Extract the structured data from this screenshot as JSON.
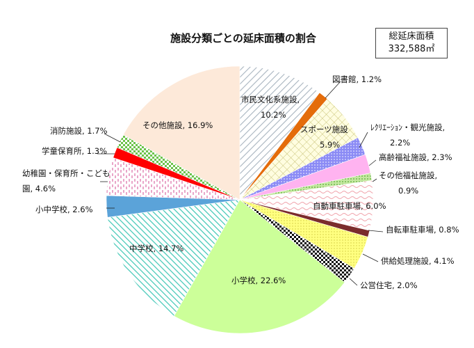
{
  "total_box": {
    "label": "総延床面積",
    "value": "332,588㎡"
  },
  "chart_data": {
    "type": "pie",
    "title": "施設分類ごとの延床面積の割合",
    "start_angle_deg": 0,
    "direction": "clockwise",
    "slices": [
      {
        "label": "市民文化系施設",
        "value": 10.2,
        "label_lines": [
          "市民文化系施設,",
          "10.2%"
        ],
        "color": "#ffffff",
        "pattern": "diag-gray"
      },
      {
        "label": "図書館",
        "value": 1.2,
        "label_lines": [
          "図書館, 1.2%"
        ],
        "color": "#e46c0a",
        "pattern": "solid"
      },
      {
        "label": "スポーツ施設",
        "value": 5.9,
        "label_lines": [
          "スポーツ施設",
          "5.9%"
        ],
        "color": "#fffde0",
        "pattern": "grid-yellow"
      },
      {
        "label": "レクリエーション・観光施設",
        "value": 2.2,
        "label_lines": [
          "ﾚｸﾘｴｰｼｮﾝ・観光施設,",
          "2.2%"
        ],
        "color": "#8b8bf5",
        "pattern": "dots-blue"
      },
      {
        "label": "高齢福祉施設",
        "value": 2.3,
        "label_lines": [
          "高齢福祉施設, 2.3%"
        ],
        "color": "#ffb3f0",
        "pattern": "solid"
      },
      {
        "label": "その他福祉施設",
        "value": 0.9,
        "label_lines": [
          "その他福祉施設,",
          "0.9%"
        ],
        "color": "#c4e8a0",
        "pattern": "dots-green"
      },
      {
        "label": "自動車駐車場",
        "value": 6.0,
        "label_lines": [
          "自動車駐車場, 6.0%"
        ],
        "color": "#ffffff",
        "pattern": "wave-pink"
      },
      {
        "label": "自転車駐車場",
        "value": 0.8,
        "label_lines": [
          "自転車駐車場, 0.8%"
        ],
        "color": "#7b2c2c",
        "pattern": "solid"
      },
      {
        "label": "供給処理施設",
        "value": 4.1,
        "label_lines": [
          "供給処理施設, 4.1%"
        ],
        "color": "#ffff80",
        "pattern": "dots-yellow"
      },
      {
        "label": "公営住宅",
        "value": 2.0,
        "label_lines": [
          "公営住宅, 2.0%"
        ],
        "color": "#ffffff",
        "pattern": "check-black"
      },
      {
        "label": "小学校",
        "value": 22.6,
        "label_lines": [
          "小学校, 22.6%"
        ],
        "color": "#ccff99",
        "pattern": "solid"
      },
      {
        "label": "中学校",
        "value": 14.7,
        "label_lines": [
          "中学校, 14.7%"
        ],
        "color": "#ffffff",
        "pattern": "diag-teal"
      },
      {
        "label": "小中学校",
        "value": 2.6,
        "label_lines": [
          "小中学校, 2.6%"
        ],
        "color": "#5ba3d9",
        "pattern": "solid"
      },
      {
        "label": "幼稚園・保育所・こども園",
        "value": 4.6,
        "label_lines": [
          "幼稚園・保育所・こども",
          "園, 4.6%"
        ],
        "color": "#ffffff",
        "pattern": "dash-pink"
      },
      {
        "label": "学童保育所",
        "value": 1.3,
        "label_lines": [
          "学童保育所, 1.3%"
        ],
        "color": "#ff0000",
        "pattern": "solid"
      },
      {
        "label": "消防施設",
        "value": 1.7,
        "label_lines": [
          "消防施設, 1.7%"
        ],
        "color": "#ffffff",
        "pattern": "check-green"
      },
      {
        "label": "その他施設",
        "value": 16.9,
        "label_lines": [
          "その他施設, 16.9%"
        ],
        "color": "#fde9d9",
        "pattern": "solid"
      }
    ]
  }
}
